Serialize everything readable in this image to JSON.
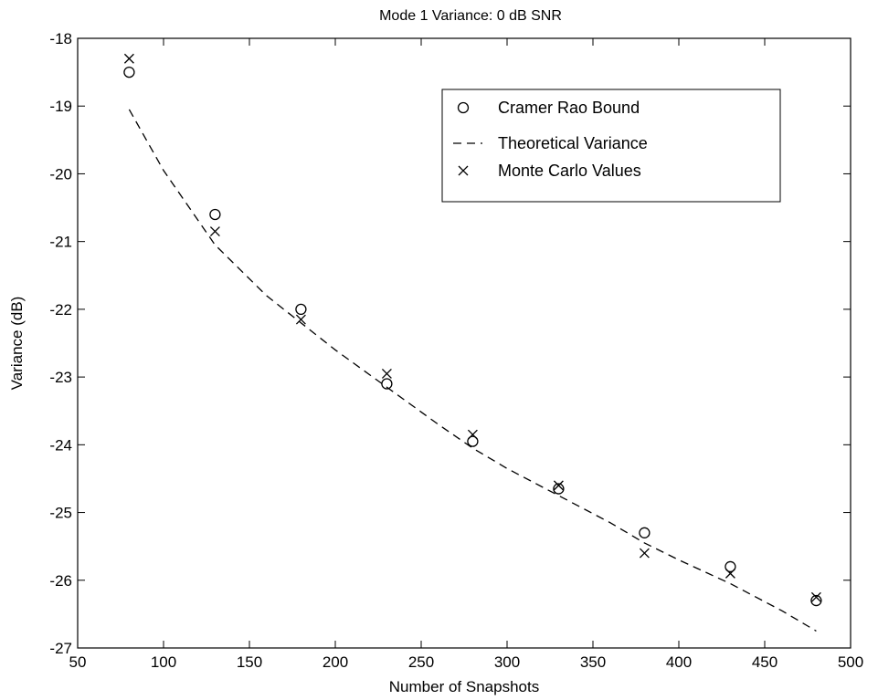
{
  "chart_data": {
    "type": "scatter",
    "title": "Mode 1 Variance:  0 dB SNR",
    "xlabel": "Number of Snapshots",
    "ylabel": "Variance (dB)",
    "xlim": [
      50,
      500
    ],
    "ylim": [
      -27,
      -18
    ],
    "xticks": [
      50,
      100,
      150,
      200,
      250,
      300,
      350,
      400,
      450,
      500
    ],
    "yticks": [
      -18,
      -19,
      -20,
      -21,
      -22,
      -23,
      -24,
      -25,
      -26,
      -27
    ],
    "xtick_labels": [
      "50",
      "100",
      "150",
      "200",
      "250",
      "300",
      "350",
      "400",
      "450",
      "500"
    ],
    "ytick_labels": [
      "-18",
      "-19",
      "-20",
      "-21",
      "-22",
      "-23",
      "-24",
      "-25",
      "-26",
      "-27"
    ],
    "grid": false,
    "legend_position": "top-right",
    "series": [
      {
        "name": "Cramer Rao Bound",
        "marker": "circle",
        "x": [
          80,
          130,
          180,
          230,
          280,
          330,
          380,
          430,
          480
        ],
        "y": [
          -18.5,
          -20.6,
          -22.0,
          -23.1,
          -23.95,
          -24.65,
          -25.3,
          -25.8,
          -26.3
        ]
      },
      {
        "name": "Theoretical Variance",
        "marker": "dashed-line",
        "x": [
          80,
          100,
          130,
          160,
          180,
          200,
          230,
          260,
          280,
          300,
          330,
          360,
          380,
          400,
          430,
          460,
          480
        ],
        "y": [
          -19.05,
          -19.95,
          -21.05,
          -21.8,
          -22.2,
          -22.6,
          -23.15,
          -23.7,
          -24.05,
          -24.35,
          -24.75,
          -25.15,
          -25.45,
          -25.7,
          -26.05,
          -26.45,
          -26.75
        ]
      },
      {
        "name": "Monte Carlo Values",
        "marker": "x",
        "x": [
          80,
          130,
          180,
          230,
          280,
          330,
          380,
          430,
          480
        ],
        "y": [
          -18.3,
          -20.85,
          -22.15,
          -22.95,
          -23.85,
          -24.6,
          -25.6,
          -25.9,
          -26.25
        ]
      }
    ]
  }
}
